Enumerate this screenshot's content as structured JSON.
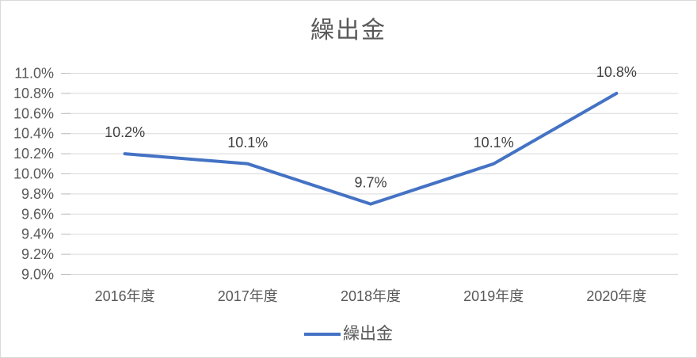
{
  "chart_data": {
    "type": "line",
    "title": "繰出金",
    "categories": [
      "2016年度",
      "2017年度",
      "2018年度",
      "2019年度",
      "2020年度"
    ],
    "series": [
      {
        "name": "繰出金",
        "values": [
          10.2,
          10.1,
          9.7,
          10.1,
          10.8
        ],
        "color": "#4472C4"
      }
    ],
    "data_labels": [
      "10.2%",
      "10.1%",
      "9.7%",
      "10.1%",
      "10.8%"
    ],
    "y_axis": {
      "min": 9.0,
      "max": 11.0,
      "step": 0.2,
      "tick_labels": [
        "11.0%",
        "10.8%",
        "10.6%",
        "10.4%",
        "10.2%",
        "10.0%",
        "9.8%",
        "9.6%",
        "9.4%",
        "9.2%",
        "9.0%"
      ]
    },
    "xlabel": "",
    "ylabel": "",
    "grid": true,
    "legend_position": "bottom",
    "colors": {
      "line": "#4472C4",
      "gridline": "#D9D9D9",
      "tick": "#BFBFBF",
      "axis_text": "#595959",
      "data_label_text": "#404040",
      "title_text": "#595959",
      "border": "#D9D9D9",
      "background": "#FFFFFF"
    }
  }
}
